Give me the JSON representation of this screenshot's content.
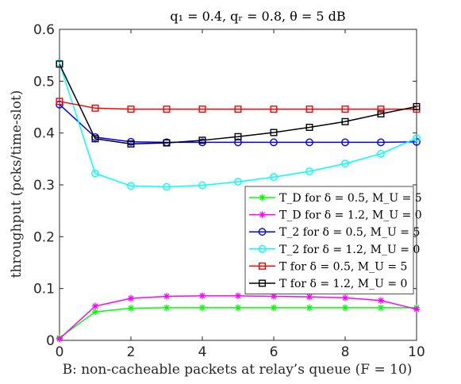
{
  "chart_data": {
    "type": "line",
    "title": "q₁ = 0.4, qᵣ = 0.8, θ = 5 dB",
    "xlabel": "B: non-cacheable packets at relay’s queue (F = 10)",
    "ylabel": "throughput (pcks/time-slot)",
    "xlim": [
      0,
      10
    ],
    "ylim": [
      0,
      0.6
    ],
    "xticks": [
      0,
      2,
      4,
      6,
      8,
      10
    ],
    "yticks": [
      0,
      0.1,
      0.2,
      0.3,
      0.4,
      0.5,
      0.6
    ],
    "xtick_labels": [
      "0",
      "2",
      "4",
      "6",
      "8",
      "10"
    ],
    "ytick_labels": [
      "0",
      "0.1",
      "0.2",
      "0.3",
      "0.4",
      "0.5",
      "0.6"
    ],
    "legend_position": "lower-right",
    "grid": false,
    "x": [
      0,
      1,
      2,
      3,
      4,
      5,
      6,
      7,
      8,
      9,
      10
    ],
    "series": [
      {
        "name": "T_D for δ = 0.5, M_U = 5",
        "color": "#00ff00",
        "marker": "asterisk",
        "values": [
          0.005,
          0.055,
          0.062,
          0.063,
          0.063,
          0.063,
          0.063,
          0.063,
          0.063,
          0.063,
          0.063
        ]
      },
      {
        "name": "T_D for δ = 1.2, M_U = 0",
        "color": "#ff00ff",
        "marker": "asterisk",
        "values": [
          0.003,
          0.066,
          0.081,
          0.085,
          0.086,
          0.086,
          0.085,
          0.084,
          0.082,
          0.077,
          0.06
        ]
      },
      {
        "name": "T_2 for δ = 0.5, M_U = 5",
        "color": "#0000ff",
        "marker": "circle",
        "values": [
          0.455,
          0.392,
          0.383,
          0.382,
          0.382,
          0.382,
          0.382,
          0.382,
          0.382,
          0.382,
          0.383
        ]
      },
      {
        "name": "T_2 for δ = 1.2, M_U = 0",
        "color": "#00ffff",
        "marker": "circle",
        "values": [
          0.535,
          0.322,
          0.298,
          0.296,
          0.299,
          0.306,
          0.315,
          0.326,
          0.341,
          0.36,
          0.39
        ]
      },
      {
        "name": "T for δ = 0.5, M_U = 5",
        "color": "#ff0000",
        "marker": "square",
        "values": [
          0.461,
          0.448,
          0.446,
          0.446,
          0.446,
          0.446,
          0.446,
          0.446,
          0.446,
          0.446,
          0.446
        ]
      },
      {
        "name": "T for δ = 1.2, M_U = 0",
        "color": "#000000",
        "marker": "square",
        "values": [
          0.533,
          0.389,
          0.379,
          0.381,
          0.386,
          0.393,
          0.401,
          0.411,
          0.422,
          0.437,
          0.451
        ]
      }
    ]
  }
}
